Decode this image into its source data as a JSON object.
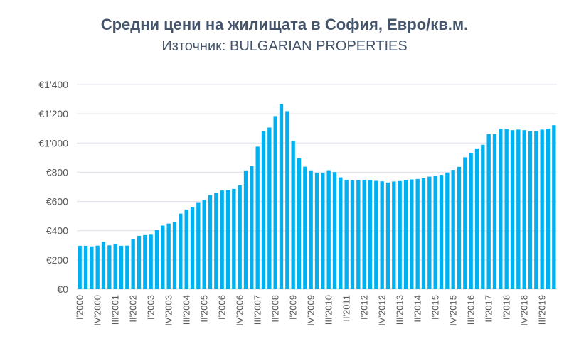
{
  "chart_data": {
    "type": "bar",
    "title": "Средни цени на жилищата в София, Евро/кв.м.",
    "subtitle": "Източник: BULGARIAN PROPERTIES",
    "xlabel": "",
    "ylabel": "",
    "ylim": [
      0,
      1400
    ],
    "yticks": [
      0,
      200,
      400,
      600,
      800,
      1000,
      1200,
      1400
    ],
    "ytick_labels": [
      "€0",
      "€200",
      "€400",
      "€600",
      "€800",
      "€1'000",
      "€1'200",
      "€1'400"
    ],
    "grid": true,
    "bar_color": "#00b0f0",
    "categories": [
      "I'2000",
      "II'2000",
      "III'2000",
      "IV'2000",
      "I'2001",
      "II'2001",
      "III'2001",
      "IV'2001",
      "I'2002",
      "II'2002",
      "III'2002",
      "IV'2002",
      "I'2003",
      "II'2003",
      "III'2003",
      "IV'2003",
      "I'2004",
      "II'2004",
      "III'2004",
      "IV'2004",
      "I'2005",
      "II'2005",
      "III'2005",
      "IV'2005",
      "I'2006",
      "II'2006",
      "III'2006",
      "IV'2006",
      "I'2007",
      "II'2007",
      "III'2007",
      "IV'2007",
      "I'2008",
      "II'2008",
      "III'2008",
      "IV'2008",
      "I'2009",
      "II'2009",
      "III'2009",
      "IV'2009",
      "I'2010",
      "II'2010",
      "III'2010",
      "IV'2010",
      "I'2011",
      "II'2011",
      "III'2011",
      "IV'2011",
      "I'2012",
      "II'2012",
      "III'2012",
      "IV'2012",
      "I'2013",
      "II'2013",
      "III'2013",
      "IV'2013",
      "I'2014",
      "II'2014",
      "III'2014",
      "IV'2014",
      "I'2015",
      "II'2015",
      "III'2015",
      "IV'2015",
      "I'2016",
      "II'2016",
      "III'2016",
      "IV'2016",
      "I'2017",
      "II'2017",
      "III'2017",
      "IV'2017",
      "I'2018",
      "II'2018",
      "III'2018",
      "IV'2018",
      "I'2019",
      "II'2019",
      "III'2019",
      "IV'2019",
      "I'2020"
    ],
    "shown_tick_labels": [
      "I'2000",
      "IV'2000",
      "III'2001",
      "II'2002",
      "I'2003",
      "IV'2003",
      "III'2004",
      "II'2005",
      "I'2006",
      "IV'2006",
      "III'2007",
      "II'2008",
      "I'2009",
      "IV'2009",
      "III'2010",
      "II'2011",
      "I'2012",
      "IV'2012",
      "III'2013",
      "II'2014",
      "I'2015",
      "IV'2015",
      "III'2016",
      "II'2017",
      "I'2018",
      "IV'2018",
      "III'2019"
    ],
    "values": [
      297,
      297,
      293,
      298,
      324,
      300,
      308,
      297,
      298,
      345,
      365,
      370,
      373,
      405,
      435,
      449,
      462,
      517,
      545,
      561,
      595,
      610,
      644,
      658,
      675,
      678,
      686,
      711,
      813,
      842,
      975,
      1082,
      1106,
      1184,
      1267,
      1218,
      1014,
      895,
      838,
      813,
      796,
      796,
      814,
      801,
      765,
      749,
      745,
      746,
      749,
      748,
      741,
      738,
      730,
      737,
      740,
      747,
      751,
      754,
      760,
      770,
      774,
      782,
      798,
      816,
      837,
      902,
      931,
      963,
      988,
      1061,
      1061,
      1098,
      1095,
      1088,
      1092,
      1088,
      1082,
      1082,
      1092,
      1098,
      1122
    ]
  }
}
